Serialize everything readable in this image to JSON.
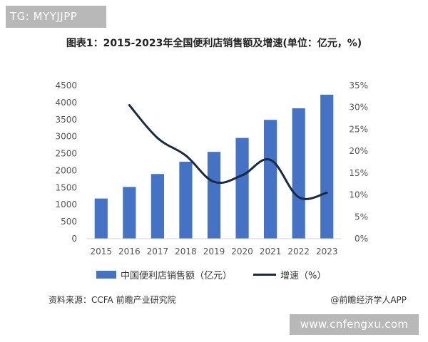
{
  "badge_top": "TG: MYYJJPP",
  "title": "图表1：2015-2023年全国便利店销售额及增速(单位：亿元，%)",
  "source": "资料来源：CCFA 前瞻产业研究院",
  "credit": "@前瞻经济学人APP",
  "badge_bottom": "www.cnfengxu.com",
  "colors": {
    "bar": "#4472c4",
    "line": "#1b2a44"
  },
  "chart_data": {
    "type": "bar",
    "categories": [
      "2015",
      "2016",
      "2017",
      "2018",
      "2019",
      "2020",
      "2021",
      "2022",
      "2023"
    ],
    "series": [
      {
        "name": "中国便利店销售额（亿元）",
        "type": "bar",
        "axis": "left",
        "values": [
          1180,
          1520,
          1900,
          2260,
          2550,
          2960,
          3490,
          3830,
          4230
        ]
      },
      {
        "name": "增速（%）",
        "type": "line",
        "axis": "right",
        "values": [
          null,
          30.5,
          23.0,
          19.0,
          13.0,
          14.5,
          18.0,
          9.5,
          10.5
        ]
      }
    ],
    "y_left": {
      "min": 0,
      "max": 4500,
      "step": 500,
      "ticks": [
        "0",
        "500",
        "1000",
        "1500",
        "2000",
        "2500",
        "3000",
        "3500",
        "4000",
        "4500"
      ]
    },
    "y_right": {
      "min": 0,
      "max": 35,
      "step": 5,
      "ticks": [
        "0%",
        "5%",
        "10%",
        "15%",
        "20%",
        "25%",
        "30%",
        "35%"
      ]
    },
    "legend_position": "bottom",
    "grid": false
  }
}
